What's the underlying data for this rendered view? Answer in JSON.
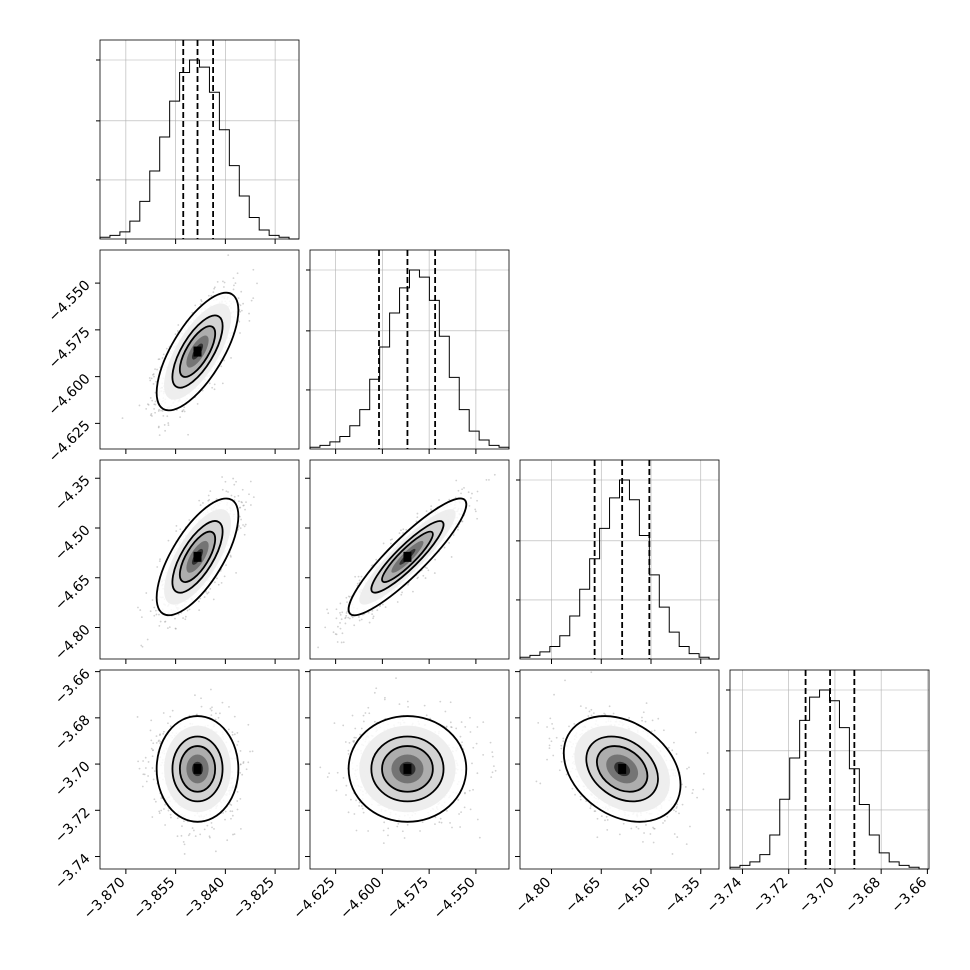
{
  "chart_data": {
    "type": "corner",
    "variables": [
      {
        "ticks": [
          -3.87,
          -3.855,
          -3.84,
          -3.825
        ],
        "tick_labels": [
          "−3.870",
          "−3.855",
          "−3.840",
          "−3.825"
        ],
        "range": [
          -3.8778,
          -3.8178
        ],
        "quantiles": [
          -3.8527,
          -3.8484,
          -3.8437
        ],
        "hist_counts": [
          0.01,
          0.02,
          0.04,
          0.1,
          0.21,
          0.38,
          0.57,
          0.77,
          0.93,
          1.0,
          0.96,
          0.82,
          0.61,
          0.41,
          0.24,
          0.12,
          0.05,
          0.02,
          0.01,
          0.0
        ]
      },
      {
        "ticks": [
          -4.625,
          -4.6,
          -4.575,
          -4.55
        ],
        "tick_labels": [
          "−4.625",
          "−4.600",
          "−4.575",
          "−4.550"
        ],
        "range": [
          -4.6387,
          -4.5323
        ],
        "quantiles": [
          -4.6018,
          -4.5866,
          -4.5718
        ],
        "hist_counts": [
          0.01,
          0.02,
          0.04,
          0.07,
          0.13,
          0.22,
          0.39,
          0.57,
          0.76,
          0.9,
          1.0,
          0.96,
          0.83,
          0.63,
          0.4,
          0.22,
          0.1,
          0.05,
          0.02,
          0.01
        ]
      },
      {
        "ticks": [
          -4.8,
          -4.65,
          -4.5,
          -4.35
        ],
        "tick_labels": [
          "−4.80",
          "−4.65",
          "−4.50",
          "−4.35"
        ],
        "range": [
          -4.895,
          -4.295
        ],
        "quantiles": [
          -4.67,
          -4.587,
          -4.505
        ],
        "hist_counts": [
          0.01,
          0.02,
          0.04,
          0.07,
          0.13,
          0.24,
          0.39,
          0.56,
          0.73,
          0.9,
          1.0,
          0.89,
          0.69,
          0.47,
          0.29,
          0.15,
          0.07,
          0.03,
          0.01,
          0.0
        ]
      },
      {
        "ticks": [
          -3.74,
          -3.72,
          -3.7,
          -3.68,
          -3.66
        ],
        "tick_labels": [
          "−3.74",
          "−3.72",
          "−3.70",
          "−3.68",
          "−3.66"
        ],
        "range": [
          -3.7454,
          -3.6593
        ],
        "quantiles": [
          -3.7127,
          -3.7021,
          -3.6916
        ],
        "hist_counts": [
          0.01,
          0.02,
          0.04,
          0.08,
          0.19,
          0.39,
          0.62,
          0.83,
          0.96,
          1.0,
          0.94,
          0.79,
          0.56,
          0.36,
          0.19,
          0.09,
          0.04,
          0.02,
          0.01,
          0.0
        ]
      }
    ],
    "pairs": [
      {
        "row": 1,
        "col": 0,
        "mean": [
          -3.8484,
          -4.5866
        ],
        "sd": [
          0.0056,
          0.0143
        ],
        "corr": 0.7
      },
      {
        "row": 2,
        "col": 0,
        "mean": [
          -3.8484,
          -4.587
        ],
        "sd": [
          0.0056,
          0.08
        ],
        "corr": 0.7
      },
      {
        "row": 2,
        "col": 1,
        "mean": [
          -4.5866,
          -4.587
        ],
        "sd": [
          0.0143,
          0.08
        ],
        "corr": 0.9
      },
      {
        "row": 3,
        "col": 0,
        "mean": [
          -3.8484,
          -3.7021
        ],
        "sd": [
          0.0056,
          0.0104
        ],
        "corr": 0.0
      },
      {
        "row": 3,
        "col": 1,
        "mean": [
          -4.5866,
          -3.7021
        ],
        "sd": [
          0.0143,
          0.0104
        ],
        "corr": 0.0
      },
      {
        "row": 3,
        "col": 2,
        "mean": [
          -4.587,
          -3.7021
        ],
        "sd": [
          0.08,
          0.0104
        ],
        "corr": -0.3
      }
    ],
    "title": "",
    "grid": true
  }
}
